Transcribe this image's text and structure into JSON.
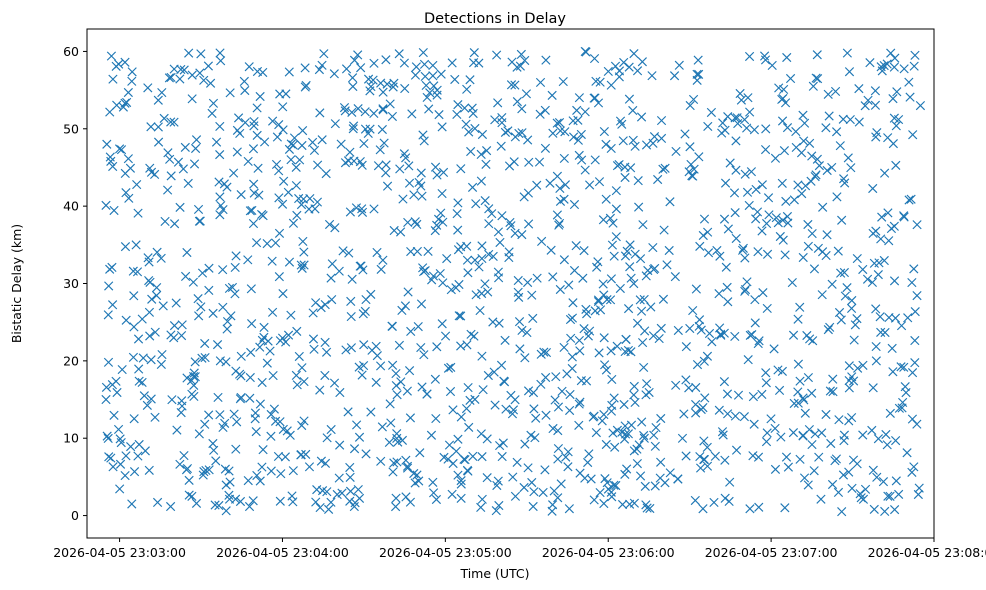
{
  "chart_data": {
    "type": "scatter",
    "title": "Detections in Delay",
    "xlabel": "Time (UTC)",
    "ylabel": "Bistatic Delay (km)",
    "marker": "x",
    "color": "#1f77b4",
    "grid": false,
    "legend": "none",
    "x_axis_type": "datetime",
    "xlim": [
      "2026-04-05 23:02:48",
      "2026-04-05 23:08:00"
    ],
    "ylim": [
      -2.9,
      62.9
    ],
    "x_ticks": [
      "2026-04-05 23:03:00",
      "2026-04-05 23:04:00",
      "2026-04-05 23:05:00",
      "2026-04-05 23:06:00",
      "2026-04-05 23:07:00",
      "2026-04-05 23:08:00"
    ],
    "y_ticks": [
      0,
      10,
      20,
      30,
      40,
      50,
      60
    ],
    "y_tick_labels": [
      "0",
      "10",
      "20",
      "30",
      "40",
      "50",
      "60"
    ],
    "time_range": [
      "2026-04-05 23:02:55",
      "2026-04-05 23:07:55"
    ],
    "delay_range_km": [
      0.5,
      60
    ],
    "approx_point_count": 1500,
    "points_sample": [
      {
        "x": "2026-04-05 23:02:55",
        "y": 40.1
      },
      {
        "x": "2026-04-05 23:02:55",
        "y": 15.0
      },
      {
        "x": "2026-04-05 23:02:56",
        "y": 7.6
      },
      {
        "x": "2026-04-05 23:02:57",
        "y": 59.4
      },
      {
        "x": "2026-04-05 23:03:00",
        "y": 47.4
      },
      {
        "x": "2026-04-05 23:03:02",
        "y": 58.6
      },
      {
        "x": "2026-04-05 23:03:02",
        "y": 53.3
      },
      {
        "x": "2026-04-05 23:03:04",
        "y": 44.9
      },
      {
        "x": "2026-04-05 23:03:14",
        "y": 1.7
      },
      {
        "x": "2026-04-05 23:03:37",
        "y": 59.8
      },
      {
        "x": "2026-04-05 23:04:04",
        "y": 5.8
      },
      {
        "x": "2026-04-05 23:04:17",
        "y": 0.8
      },
      {
        "x": "2026-04-05 23:04:43",
        "y": 59.7
      },
      {
        "x": "2026-04-05 23:05:52",
        "y": 17.4
      },
      {
        "x": "2026-04-05 23:07:27",
        "y": 10.4
      },
      {
        "x": "2026-04-05 23:07:38",
        "y": 0.8
      },
      {
        "x": "2026-04-05 23:07:43",
        "y": 2.5
      },
      {
        "x": "2026-04-05 23:07:49",
        "y": 38.6
      },
      {
        "x": "2026-04-05 23:07:53",
        "y": 59.5
      },
      {
        "x": "2026-04-05 23:07:55",
        "y": 53.0
      }
    ]
  }
}
